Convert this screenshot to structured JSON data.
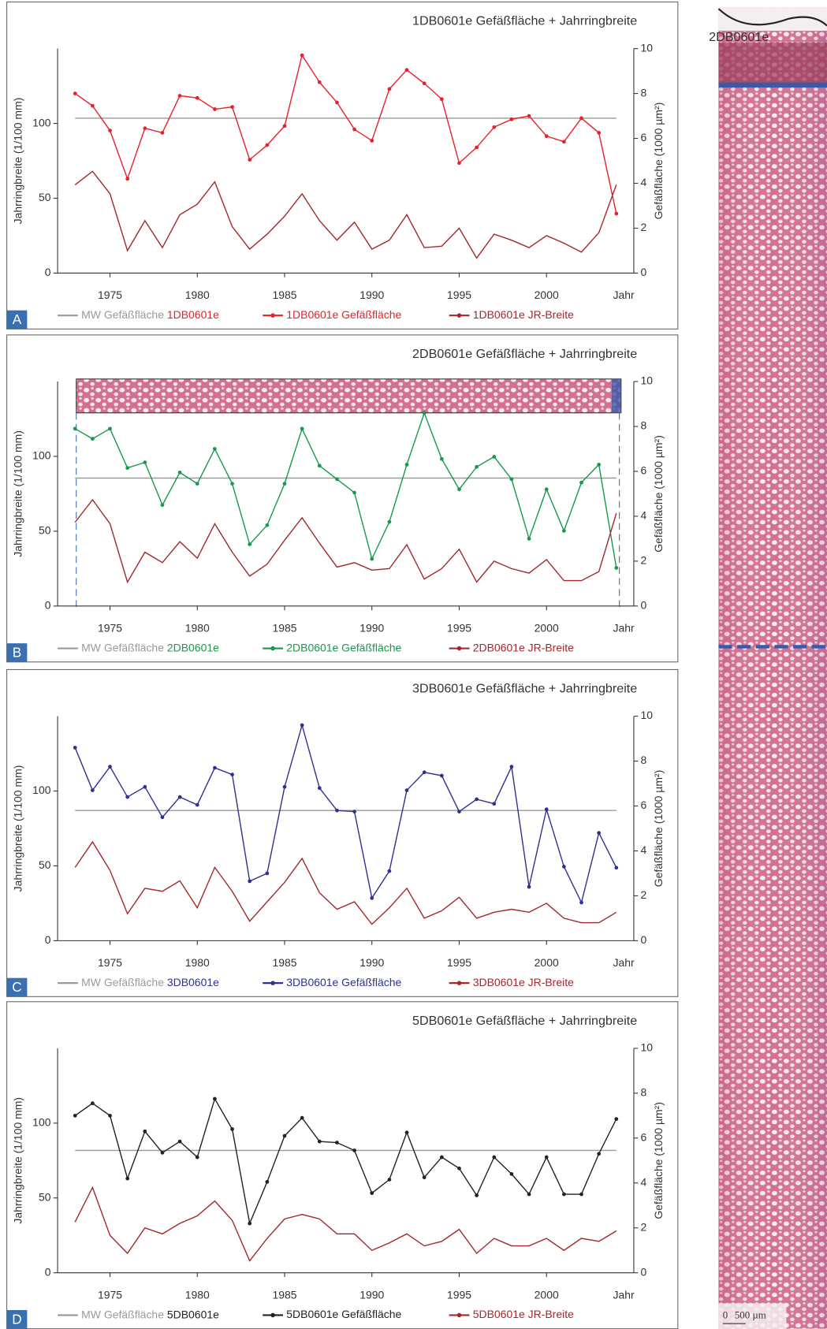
{
  "chart_data": [
    {
      "type": "line",
      "panel": "A",
      "title": "1DB0601e  Gefäßfläche + Jahrringbreite",
      "x_label": "Jahr",
      "y_label": "Jahrringbreite (1/100 mm)",
      "y2_label": "Gefäßfläche (1000 µm²)",
      "x": [
        1973,
        1974,
        1975,
        1976,
        1977,
        1978,
        1979,
        1980,
        1981,
        1982,
        1983,
        1984,
        1985,
        1986,
        1987,
        1988,
        1989,
        1990,
        1991,
        1992,
        1993,
        1994,
        1995,
        1996,
        1997,
        1998,
        1999,
        2000,
        2001,
        2002,
        2003,
        2004
      ],
      "xlim": [
        1972,
        2005
      ],
      "xticks": [
        1975,
        1980,
        1985,
        1990,
        1995,
        2000
      ],
      "ylim": [
        0,
        150
      ],
      "yticks": [
        0,
        50,
        100
      ],
      "y2lim": [
        0,
        10
      ],
      "y2ticks": [
        0,
        2,
        4,
        6,
        8,
        10
      ],
      "series": [
        {
          "name": "MW Gefäßfläche 1DB0601e",
          "color": "#9a9a9a",
          "x": [
            1973,
            2004
          ],
          "values": [
            6.9,
            6.9
          ],
          "axis": "y2"
        },
        {
          "name": "1DB0601e Gefäßfläche",
          "color": "#e8202a",
          "marker": true,
          "axis": "y2",
          "values": [
            8.0,
            7.45,
            6.35,
            4.2,
            6.45,
            6.25,
            7.9,
            7.8,
            7.3,
            7.4,
            5.05,
            5.7,
            6.55,
            9.7,
            8.5,
            7.6,
            6.4,
            5.9,
            8.2,
            9.05,
            8.45,
            7.75,
            4.9,
            5.6,
            6.5,
            6.85,
            7.0,
            6.1,
            5.85,
            6.9,
            6.25,
            2.65
          ]
        },
        {
          "name": "1DB0601e JR-Breite",
          "color": "#a3272b",
          "values": [
            59,
            68,
            53,
            15,
            35,
            17,
            39,
            46,
            61,
            31,
            16,
            26,
            38,
            53,
            35,
            22,
            34,
            16,
            22,
            39,
            17,
            18,
            30,
            10,
            26,
            22,
            17,
            25,
            20,
            14,
            27,
            59
          ]
        }
      ]
    },
    {
      "type": "line",
      "panel": "B",
      "title": "2DB0601e  Gefäßfläche + Jahrringbreite",
      "x_label": "Jahr",
      "y_label": "Jahrringbreite (1/100 mm)",
      "y2_label": "Gefäßfläche (1000 µm²)",
      "x": [
        1973,
        1974,
        1975,
        1976,
        1977,
        1978,
        1979,
        1980,
        1981,
        1982,
        1983,
        1984,
        1985,
        1986,
        1987,
        1988,
        1989,
        1990,
        1991,
        1992,
        1993,
        1994,
        1995,
        1996,
        1997,
        1998,
        1999,
        2000,
        2001,
        2002,
        2003,
        2004
      ],
      "xlim": [
        1972,
        2005
      ],
      "xticks": [
        1975,
        1980,
        1985,
        1990,
        1995,
        2000
      ],
      "ylim": [
        0,
        150
      ],
      "yticks": [
        0,
        50,
        100
      ],
      "y2lim": [
        0,
        10
      ],
      "y2ticks": [
        0,
        2,
        4,
        6,
        8,
        10
      ],
      "series": [
        {
          "name": "MW Gefäßfläche 2DB0601e",
          "color": "#9a9a9a",
          "x": [
            1973,
            2004
          ],
          "values": [
            5.7,
            5.7
          ],
          "axis": "y2"
        },
        {
          "name": "2DB0601e Gefäßfläche",
          "color": "#16994a",
          "marker": true,
          "axis": "y2",
          "values": [
            7.9,
            7.45,
            7.9,
            6.15,
            6.4,
            4.5,
            5.95,
            5.45,
            7.0,
            5.45,
            2.75,
            3.6,
            5.45,
            7.9,
            6.25,
            5.65,
            5.05,
            2.1,
            3.75,
            6.3,
            8.6,
            6.55,
            5.2,
            6.2,
            6.65,
            5.65,
            3.0,
            5.2,
            3.35,
            5.5,
            6.3,
            1.7
          ]
        },
        {
          "name": "2DB0601e JR-Breite",
          "color": "#a3272b",
          "values": [
            56,
            71,
            55,
            16,
            36,
            29,
            43,
            32,
            55,
            36,
            20,
            28,
            44,
            59,
            42,
            26,
            29,
            24,
            25,
            41,
            18,
            25,
            38,
            16,
            30,
            25,
            22,
            31,
            17,
            17,
            23,
            62
          ]
        }
      ]
    },
    {
      "type": "line",
      "panel": "C",
      "title": "3DB0601e  Gefäßfläche + Jahrringbreite",
      "x_label": "Jahr",
      "y_label": "Jahrringbreite (1/100 mm)",
      "y2_label": "Gefäßfläche (1000 µm²)",
      "x": [
        1973,
        1974,
        1975,
        1976,
        1977,
        1978,
        1979,
        1980,
        1981,
        1982,
        1983,
        1984,
        1985,
        1986,
        1987,
        1988,
        1989,
        1990,
        1991,
        1992,
        1993,
        1994,
        1995,
        1996,
        1997,
        1998,
        1999,
        2000,
        2001,
        2002,
        2003,
        2004
      ],
      "xlim": [
        1972,
        2005
      ],
      "xticks": [
        1975,
        1980,
        1985,
        1990,
        1995,
        2000
      ],
      "ylim": [
        0,
        150
      ],
      "yticks": [
        0,
        50,
        100
      ],
      "y2lim": [
        0,
        10
      ],
      "y2ticks": [
        0,
        2,
        4,
        6,
        8,
        10
      ],
      "series": [
        {
          "name": "MW Gefäßfläche 3DB0601e",
          "color": "#9a9a9a",
          "x": [
            1973,
            2004
          ],
          "values": [
            5.8,
            5.8
          ],
          "axis": "y2"
        },
        {
          "name": "3DB0601e Gefäßfläche",
          "color": "#2e3192",
          "marker": true,
          "axis": "y2",
          "values": [
            8.6,
            6.7,
            7.75,
            6.4,
            6.85,
            5.5,
            6.4,
            6.05,
            7.7,
            7.4,
            2.65,
            3.0,
            6.85,
            9.6,
            6.8,
            5.8,
            5.75,
            1.9,
            3.1,
            6.7,
            7.5,
            7.35,
            5.75,
            6.3,
            6.1,
            7.75,
            2.4,
            5.85,
            3.3,
            1.7,
            4.8,
            3.25
          ]
        },
        {
          "name": "3DB0601e JR-Breite",
          "color": "#a3272b",
          "values": [
            49,
            66,
            47,
            18,
            35,
            33,
            40,
            22,
            49,
            33,
            13,
            26,
            39,
            55,
            32,
            21,
            26,
            11,
            22,
            35,
            15,
            20,
            29,
            15,
            19,
            21,
            19,
            25,
            15,
            12,
            12,
            19
          ]
        }
      ]
    },
    {
      "type": "line",
      "panel": "D",
      "title": "5DB0601e  Gefäßfläche + Jahrringbreite",
      "x_label": "Jahr",
      "y_label": "Jahrringbreite (1/100 mm)",
      "y2_label": "Gefäßfläche (1000 µm²)",
      "x": [
        1973,
        1974,
        1975,
        1976,
        1977,
        1978,
        1979,
        1980,
        1981,
        1982,
        1983,
        1984,
        1985,
        1986,
        1987,
        1988,
        1989,
        1990,
        1991,
        1992,
        1993,
        1994,
        1995,
        1996,
        1997,
        1998,
        1999,
        2000,
        2001,
        2002,
        2003,
        2004
      ],
      "xlim": [
        1972,
        2005
      ],
      "xticks": [
        1975,
        1980,
        1985,
        1990,
        1995,
        2000
      ],
      "ylim": [
        0,
        150
      ],
      "yticks": [
        0,
        50,
        100
      ],
      "y2lim": [
        0,
        10
      ],
      "y2ticks": [
        0,
        2,
        4,
        6,
        8,
        10
      ],
      "series": [
        {
          "name": "MW Gefäßfläche 5DB0601e",
          "color": "#9a9a9a",
          "x": [
            1973,
            2004
          ],
          "values": [
            5.45,
            5.45
          ],
          "axis": "y2"
        },
        {
          "name": "5DB0601e Gefäßfläche",
          "color": "#222222",
          "marker": true,
          "axis": "y2",
          "values": [
            7.0,
            7.55,
            7.0,
            4.2,
            6.3,
            5.35,
            5.85,
            5.15,
            7.75,
            6.4,
            2.2,
            4.05,
            6.1,
            6.9,
            5.85,
            5.8,
            5.45,
            3.55,
            4.15,
            6.25,
            4.25,
            5.15,
            4.65,
            3.45,
            5.15,
            4.4,
            3.5,
            5.15,
            3.5,
            3.5,
            5.3,
            6.85
          ]
        },
        {
          "name": "5DB0601e JR-Breite",
          "color": "#a3272b",
          "values": [
            34,
            57,
            25,
            13,
            30,
            26,
            33,
            38,
            48,
            35,
            8,
            23,
            36,
            39,
            36,
            26,
            26,
            15,
            20,
            26,
            18,
            21,
            29,
            13,
            23,
            18,
            18,
            23,
            15,
            23,
            21,
            28
          ]
        }
      ]
    }
  ],
  "micrograph": {
    "label": "2DB0601e",
    "scale_start": "0",
    "scale_end": "500 µm"
  }
}
